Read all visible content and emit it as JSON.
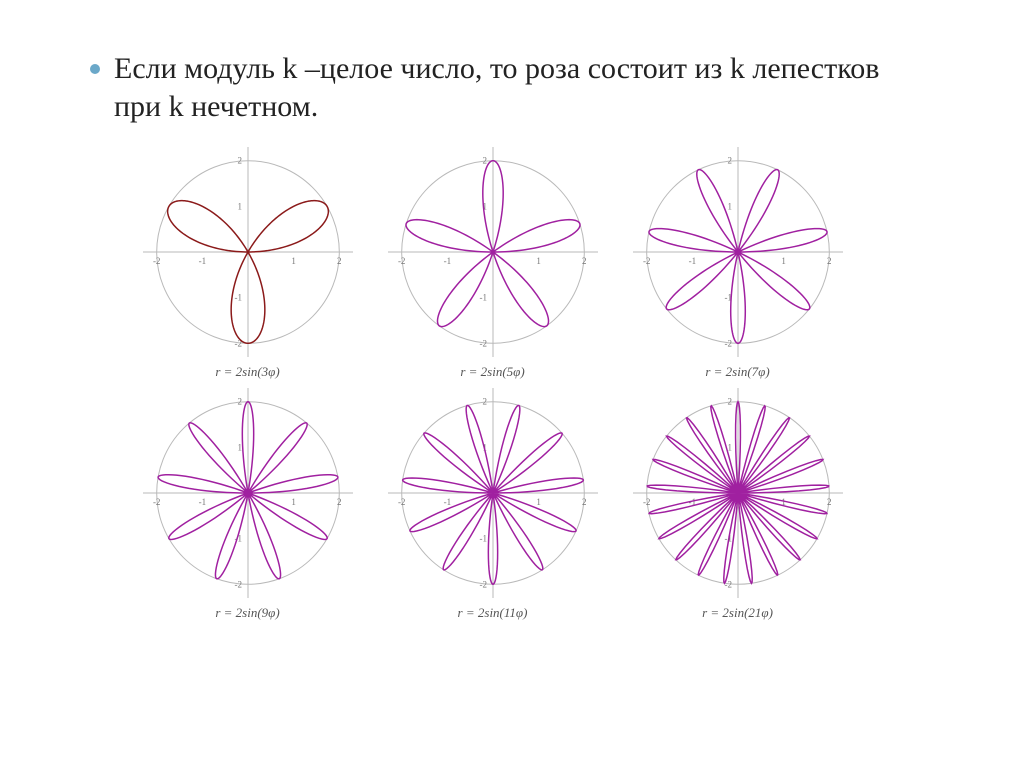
{
  "bullet": {
    "text": "Если модуль k –целое число, то роза состоит из k лепестков при k нечетном.",
    "bullet_color": "#6ba8c9",
    "font_size": 30,
    "text_color": "#222222"
  },
  "charts_common": {
    "circle_radius": 2,
    "circle_stroke": "#b9b9b9",
    "axis_stroke": "#b9b9b9",
    "tick_color": "#777777",
    "tick_fontsize": 9,
    "plot_size": 210,
    "xlim": [
      -2.3,
      2.3
    ],
    "ylim": [
      -2.3,
      2.3
    ],
    "xticks": [
      -2,
      -1,
      1,
      2
    ],
    "yticks": [
      -2,
      -1,
      1,
      2
    ],
    "background": "#ffffff"
  },
  "charts": [
    {
      "type": "rose",
      "k": 3,
      "amplitude": 2,
      "petals": 3,
      "stroke": "#8b1a1a",
      "stroke_width": 1.5,
      "caption": "r = 2sin(3φ)"
    },
    {
      "type": "rose",
      "k": 5,
      "amplitude": 2,
      "petals": 5,
      "stroke": "#a020a0",
      "stroke_width": 1.5,
      "caption": "r = 2sin(5φ)"
    },
    {
      "type": "rose",
      "k": 7,
      "amplitude": 2,
      "petals": 7,
      "stroke": "#a020a0",
      "stroke_width": 1.5,
      "caption": "r = 2sin(7φ)"
    },
    {
      "type": "rose",
      "k": 9,
      "amplitude": 2,
      "petals": 9,
      "stroke": "#a020a0",
      "stroke_width": 1.5,
      "caption": "r = 2sin(9φ)"
    },
    {
      "type": "rose",
      "k": 11,
      "amplitude": 2,
      "petals": 11,
      "stroke": "#a020a0",
      "stroke_width": 1.5,
      "caption": "r = 2sin(11φ)"
    },
    {
      "type": "rose",
      "k": 21,
      "amplitude": 2,
      "petals": 21,
      "stroke": "#a020a0",
      "stroke_width": 1.5,
      "caption": "r = 2sin(21φ)"
    }
  ]
}
